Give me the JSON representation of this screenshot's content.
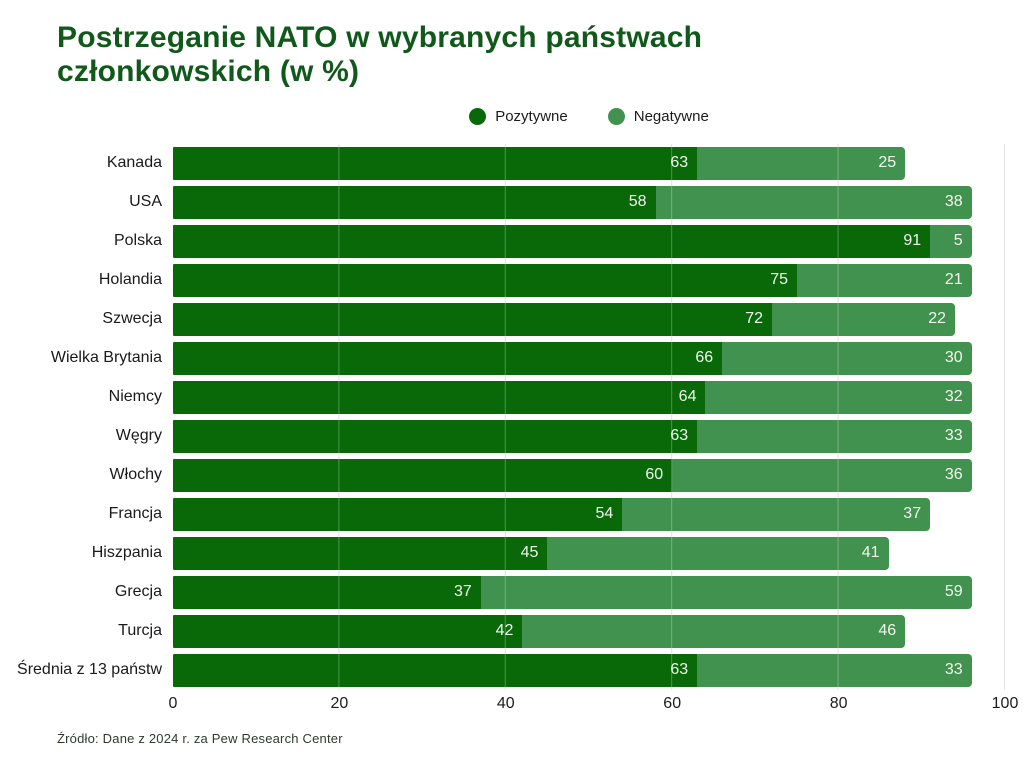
{
  "title": "Postrzeganie NATO w wybranych państwach członkowskich (w %)",
  "legend": [
    {
      "label": "Pozytywne",
      "color": "#096909"
    },
    {
      "label": "Negatywne",
      "color": "#41924f"
    }
  ],
  "source": "Źródło: Dane z 2024 r. za Pew Research Center",
  "colors": {
    "positive": "#096909",
    "negative": "#41924f",
    "title_text": "#11591b",
    "gridline": "#d9d9d9",
    "value_label": "#f1f7ee",
    "axis_text": "#1c1c1c",
    "background": "#ffffff"
  },
  "chart_data": {
    "type": "bar",
    "orientation": "horizontal",
    "stacked": true,
    "title": "Postrzeganie NATO w wybranych państwach członkowskich (w %)",
    "categories": [
      "Kanada",
      "USA",
      "Polska",
      "Holandia",
      "Szwecja",
      "Wielka Brytania",
      "Niemcy",
      "Węgry",
      "Włochy",
      "Francja",
      "Hiszpania",
      "Grecja",
      "Turcja",
      "Średnia z 13 państw"
    ],
    "series": [
      {
        "name": "Pozytywne",
        "color": "#096909",
        "values": [
          63,
          58,
          91,
          75,
          72,
          66,
          64,
          63,
          60,
          54,
          45,
          37,
          42,
          63
        ]
      },
      {
        "name": "Negatywne",
        "color": "#41924f",
        "values": [
          25,
          38,
          5,
          21,
          22,
          30,
          32,
          33,
          36,
          37,
          41,
          59,
          46,
          33
        ]
      }
    ],
    "xlabel": "",
    "ylabel": "",
    "xlim": [
      0,
      100
    ],
    "xticks": [
      0,
      20,
      40,
      60,
      80,
      100
    ],
    "grid": true,
    "legend_position": "top-center",
    "value_labels": "inside-right",
    "source_note": "Źródło: Dane z 2024 r. za Pew Research Center"
  }
}
